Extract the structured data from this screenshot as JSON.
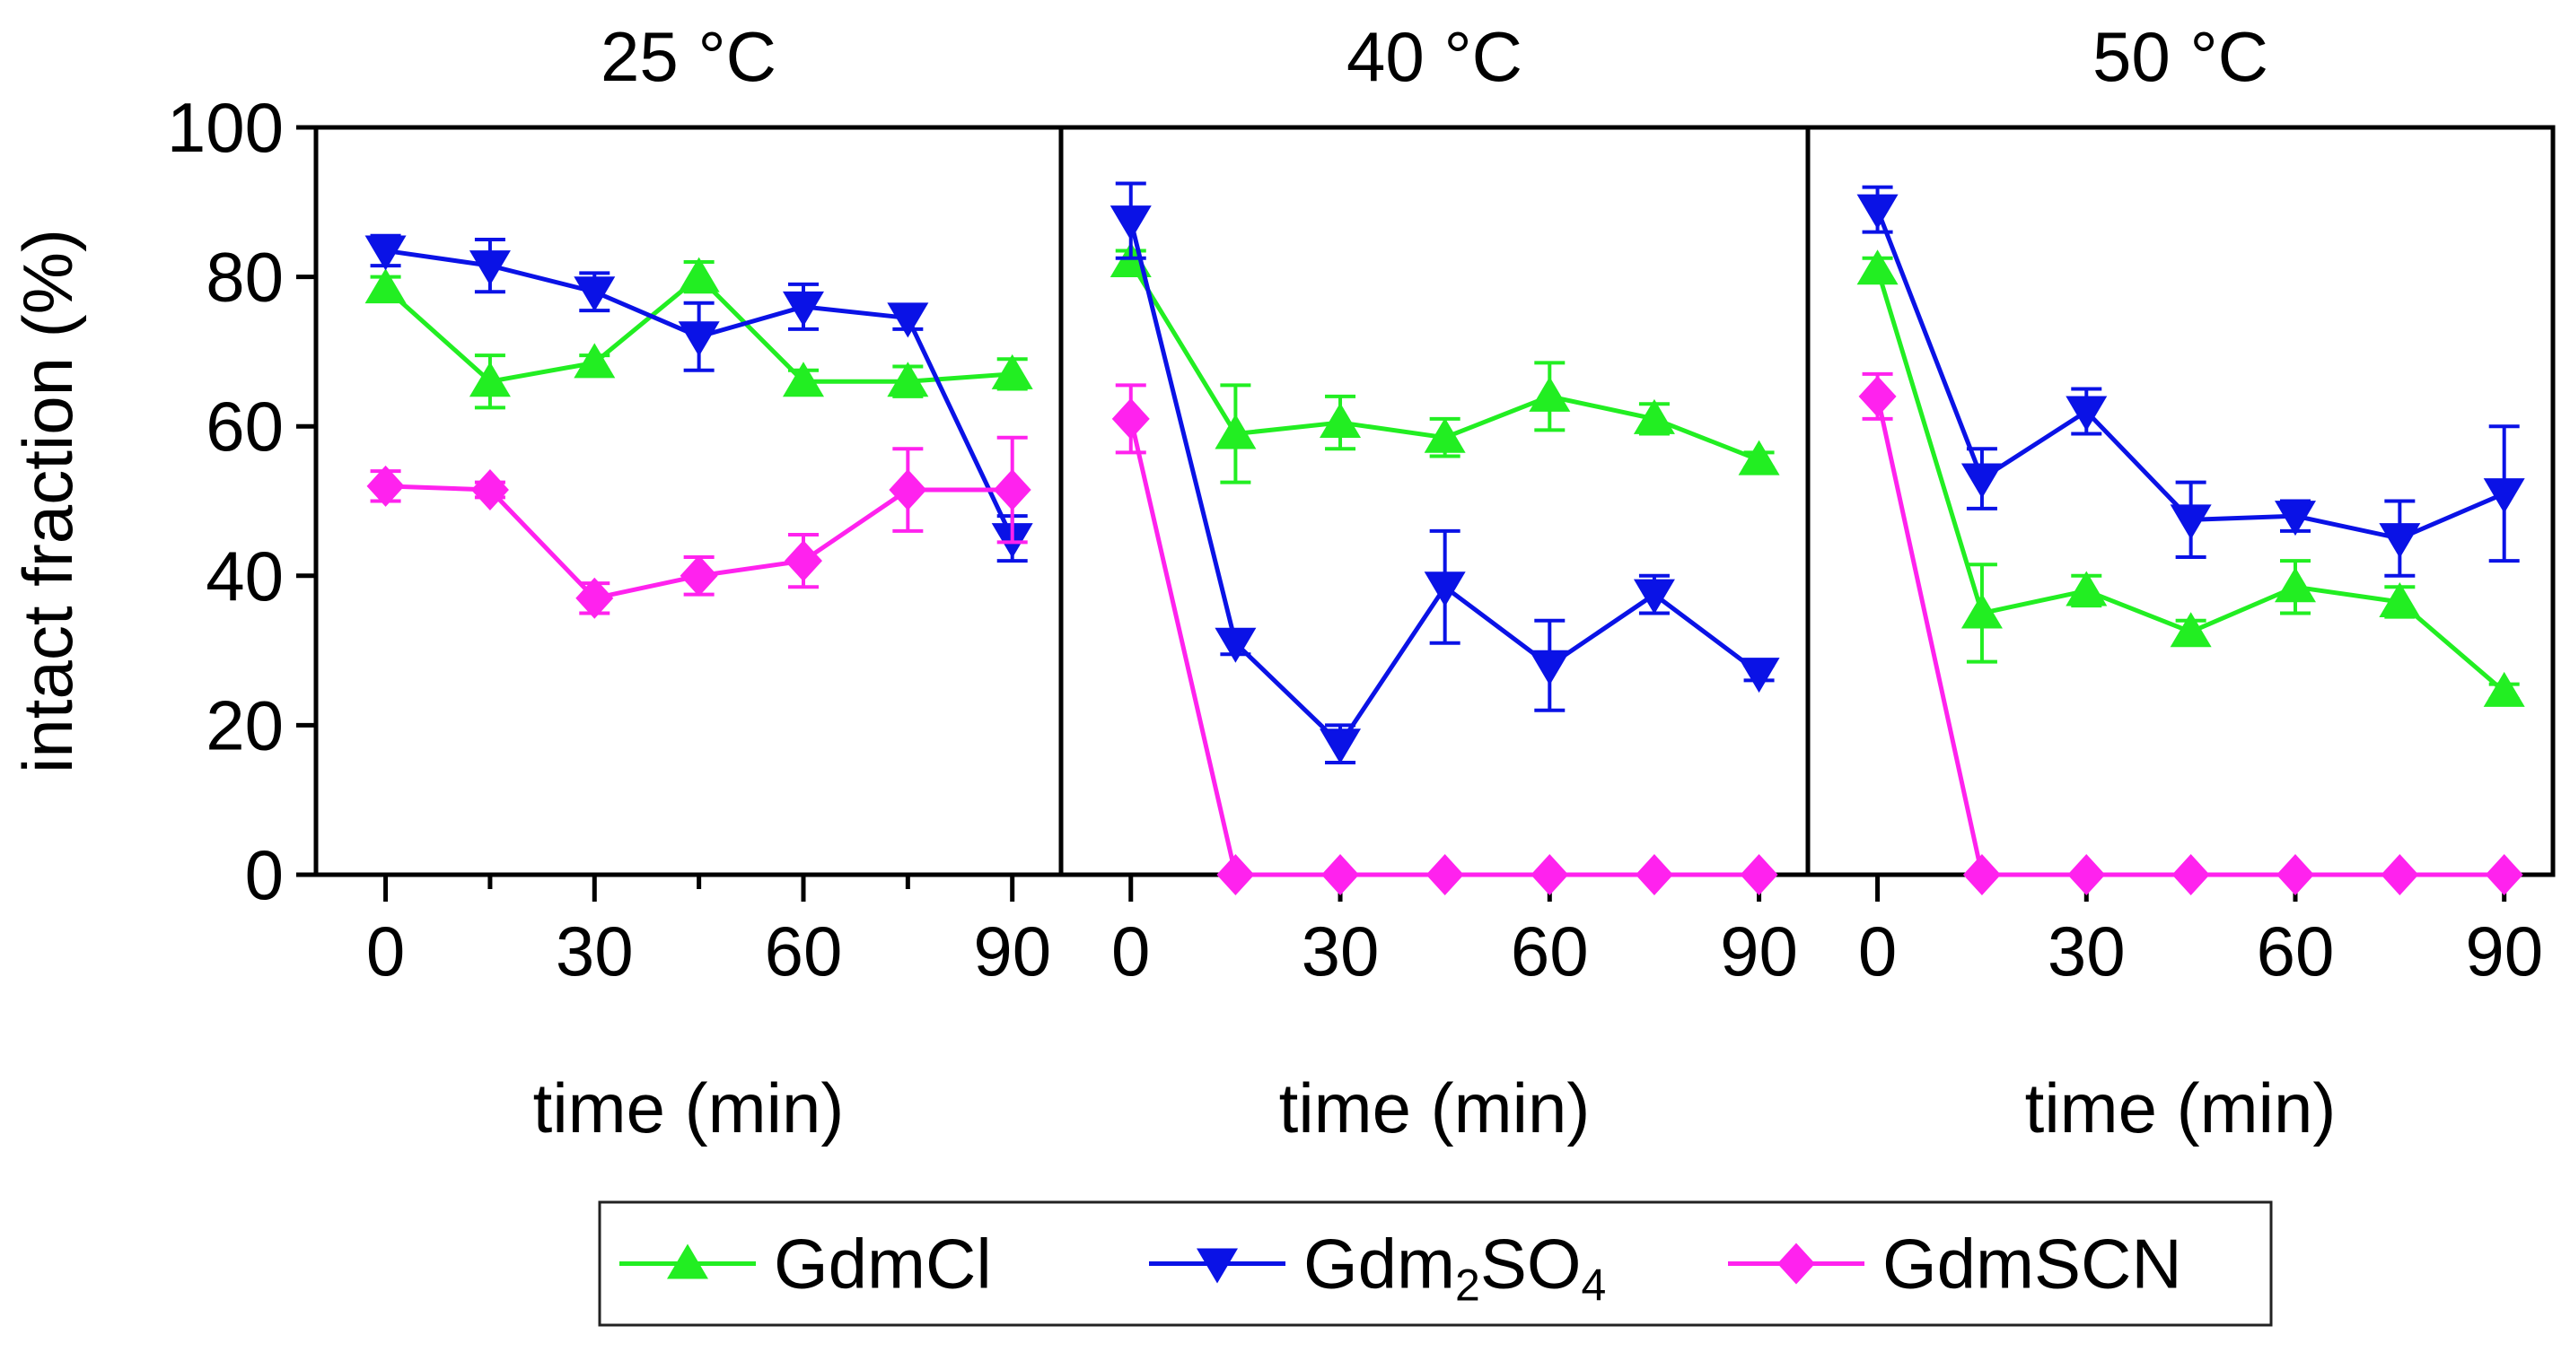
{
  "chart_data": {
    "type": "line",
    "ylabel": "intact fraction (%)",
    "xlabel": "time (min)",
    "ylim": [
      0,
      100
    ],
    "xlim": [
      -10,
      97
    ],
    "yticks": [
      0,
      20,
      40,
      60,
      80,
      100
    ],
    "xticks": [
      0,
      30,
      60,
      90
    ],
    "ytick_labels": [
      "0",
      "20",
      "40",
      "60",
      "80",
      "100"
    ],
    "xtick_labels": [
      "0",
      "30",
      "60",
      "90"
    ],
    "x": [
      0,
      15,
      30,
      45,
      60,
      75,
      90
    ],
    "legend_position": "bottom-center",
    "series_styles": [
      {
        "name": "GdmCl",
        "color": "#22ee22",
        "marker": "triangle-up"
      },
      {
        "name": "Gdm2SO4",
        "color": "#0a12e6",
        "marker": "triangle-down"
      },
      {
        "name": "GdmSCN",
        "color": "#ff22ee",
        "marker": "diamond"
      }
    ],
    "legend": [
      {
        "parts": [
          [
            "GdmCl",
            "n"
          ]
        ]
      },
      {
        "parts": [
          [
            "Gdm",
            "n"
          ],
          [
            "2",
            "sub"
          ],
          [
            "SO",
            "n"
          ],
          [
            "4",
            "sub"
          ]
        ]
      },
      {
        "parts": [
          [
            "GdmSCN",
            "n"
          ]
        ]
      }
    ],
    "panels": [
      {
        "title": "25 °C",
        "series": [
          {
            "name": "GdmCl",
            "values": [
              78.5,
              66,
              68.5,
              80,
              66,
              66,
              67
            ],
            "errors": [
              1.5,
              3.5,
              1,
              2,
              1.5,
              2,
              2
            ]
          },
          {
            "name": "Gdm2SO4",
            "values": [
              83.5,
              81.5,
              78,
              72,
              76,
              74.5,
              45
            ],
            "errors": [
              2,
              3.5,
              2.5,
              4.5,
              3,
              1.5,
              3
            ]
          },
          {
            "name": "GdmSCN",
            "values": [
              52,
              51.5,
              37,
              40,
              42,
              51.5,
              51.5
            ],
            "errors": [
              2,
              1,
              2,
              2.5,
              3.5,
              5.5,
              7
            ]
          }
        ]
      },
      {
        "title": "40 °C",
        "series": [
          {
            "name": "GdmCl",
            "values": [
              82,
              59,
              60.5,
              58.5,
              64,
              61,
              55.5
            ],
            "errors": [
              1.5,
              6.5,
              3.5,
              2.5,
              4.5,
              2,
              1
            ]
          },
          {
            "name": "Gdm2SO4",
            "values": [
              87.5,
              31,
              17.5,
              38.5,
              28,
              37.5,
              27
            ],
            "errors": [
              5,
              1.5,
              2.5,
              7.5,
              6,
              2.5,
              1
            ]
          },
          {
            "name": "GdmSCN",
            "values": [
              61,
              0,
              0,
              0,
              0,
              0,
              0
            ],
            "errors": [
              4.5,
              0,
              0,
              0,
              0,
              0,
              0
            ]
          }
        ]
      },
      {
        "title": "50 °C",
        "series": [
          {
            "name": "GdmCl",
            "values": [
              81,
              35,
              38,
              32.5,
              38.5,
              36.5,
              24.5
            ],
            "errors": [
              1.5,
              6.5,
              2,
              1.5,
              3.5,
              2,
              1
            ]
          },
          {
            "name": "Gdm2SO4",
            "values": [
              89,
              53,
              62,
              47.5,
              48,
              45,
              51
            ],
            "errors": [
              3,
              4,
              3,
              5,
              2,
              5,
              9
            ]
          },
          {
            "name": "GdmSCN",
            "values": [
              64,
              0,
              0,
              0,
              0,
              0,
              0
            ],
            "errors": [
              3,
              0,
              0,
              0,
              0,
              0,
              0
            ]
          }
        ]
      }
    ]
  }
}
